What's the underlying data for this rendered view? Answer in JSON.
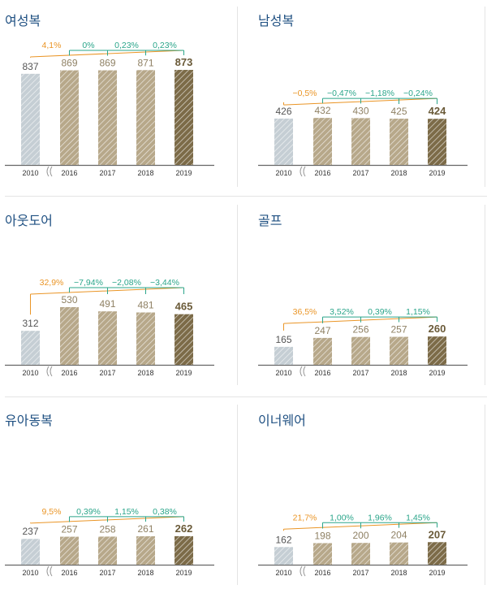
{
  "colors": {
    "title": "#1f5082",
    "bar_2010": "#c5ced4",
    "bar_mid": "#b7a88a",
    "bar_2019": "#7c6b48",
    "value_2010": "#555555",
    "value_mid": "#8f8164",
    "value_2019": "#6a5a38",
    "change_first": "#ea9526",
    "change_rest": "#2aa58a",
    "axis": "#666666",
    "tick_label": "#333333"
  },
  "chart_data": [
    {
      "type": "bar",
      "title": "여성복",
      "categories": [
        "2010",
        "2016",
        "2017",
        "2018",
        "2019"
      ],
      "values": [
        837,
        869,
        869,
        871,
        873
      ],
      "value_labels": [
        "837",
        "869",
        "869",
        "871",
        "873"
      ],
      "changes": [
        "4,1%",
        "0%",
        "0,23%",
        "0,23%"
      ],
      "ylim": [
        0,
        1000
      ]
    },
    {
      "type": "bar",
      "title": "남성복",
      "categories": [
        "2010",
        "2016",
        "2017",
        "2018",
        "2019"
      ],
      "values": [
        426,
        432,
        430,
        425,
        424
      ],
      "value_labels": [
        "426",
        "432",
        "430",
        "425",
        "424"
      ],
      "changes": [
        "−0,5%",
        "−0,47%",
        "−1,18%",
        "−0,24%"
      ],
      "ylim": [
        0,
        1000
      ]
    },
    {
      "type": "bar",
      "title": "아웃도어",
      "categories": [
        "2010",
        "2016",
        "2017",
        "2018",
        "2019"
      ],
      "values": [
        312,
        530,
        491,
        481,
        465
      ],
      "value_labels": [
        "312",
        "530",
        "491",
        "481",
        "465"
      ],
      "changes": [
        "32,9%",
        "−7,94%",
        "−2,08%",
        "−3,44%"
      ],
      "ylim": [
        0,
        1000
      ]
    },
    {
      "type": "bar",
      "title": "골프",
      "categories": [
        "2010",
        "2016",
        "2017",
        "2018",
        "2019"
      ],
      "values": [
        165,
        247,
        256,
        257,
        260
      ],
      "value_labels": [
        "165",
        "247",
        "256",
        "257",
        "260"
      ],
      "changes": [
        "36,5%",
        "3,52%",
        "0,39%",
        "1,15%"
      ],
      "ylim": [
        0,
        1000
      ]
    },
    {
      "type": "bar",
      "title": "유아동복",
      "categories": [
        "2010",
        "2016",
        "2017",
        "2018",
        "2019"
      ],
      "values": [
        237,
        257,
        258,
        261,
        262
      ],
      "value_labels": [
        "237",
        "257",
        "258",
        "261",
        "262"
      ],
      "changes": [
        "9,5%",
        "0,39%",
        "1,15%",
        "0,38%"
      ],
      "ylim": [
        0,
        1000
      ]
    },
    {
      "type": "bar",
      "title": "이너웨어",
      "categories": [
        "2010",
        "2016",
        "2017",
        "2018",
        "2019"
      ],
      "values": [
        162,
        198,
        200,
        204,
        207
      ],
      "value_labels": [
        "162",
        "198",
        "200",
        "204",
        "207"
      ],
      "changes": [
        "21,7%",
        "1,00%",
        "1,96%",
        "1,45%"
      ],
      "ylim": [
        0,
        1000
      ]
    }
  ]
}
